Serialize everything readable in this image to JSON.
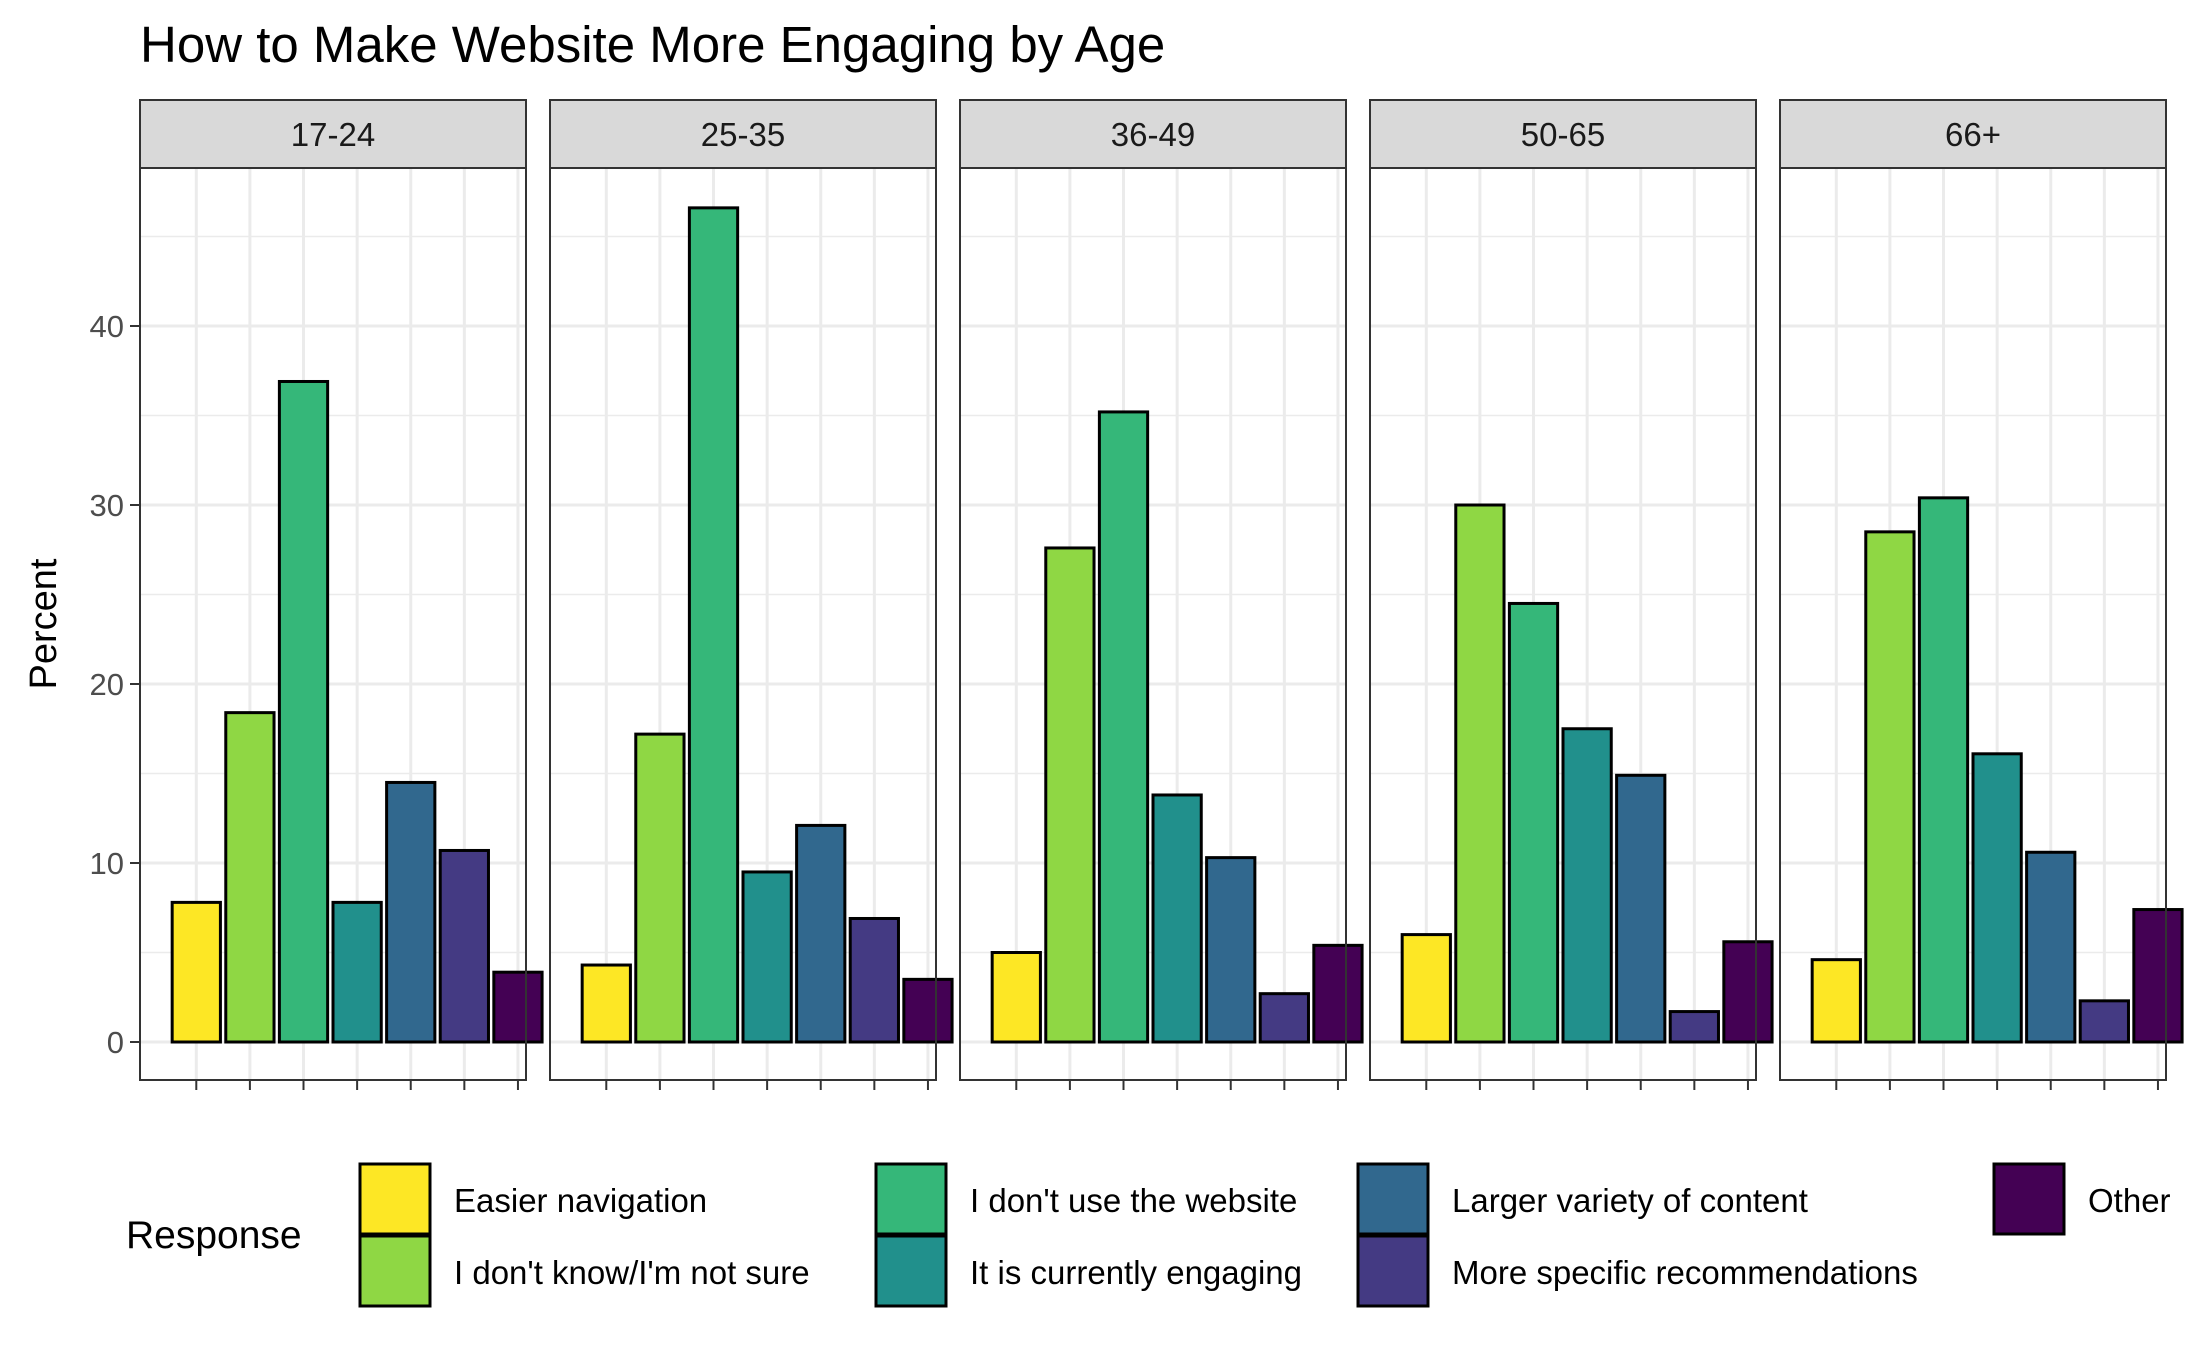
{
  "chart_data": {
    "type": "bar",
    "title": "How to Make Website More Engaging by Age",
    "xlabel": "",
    "ylabel": "Percent",
    "ylim": [
      0,
      49
    ],
    "yticks": [
      0,
      10,
      20,
      30,
      40
    ],
    "grid": true,
    "legend_position": "bottom",
    "legend_title": "Response",
    "categories": [
      "Easier navigation",
      "I don't know/I'm not sure",
      "I don't use the website",
      "It is currently engaging",
      "Larger variety of content",
      "More specific recommendations",
      "Other"
    ],
    "colors": [
      "#FDE725",
      "#8FD744",
      "#35B779",
      "#21908C",
      "#31688E",
      "#443A83",
      "#440154"
    ],
    "facets": [
      {
        "label": "17-24",
        "values": [
          7.8,
          18.4,
          36.9,
          7.8,
          14.5,
          10.7,
          3.9
        ]
      },
      {
        "label": "25-35",
        "values": [
          4.3,
          17.2,
          46.6,
          9.5,
          12.1,
          6.9,
          3.5
        ]
      },
      {
        "label": "36-49",
        "values": [
          5.0,
          27.6,
          35.2,
          13.8,
          10.3,
          2.7,
          5.4
        ]
      },
      {
        "label": "50-65",
        "values": [
          6.0,
          30.0,
          24.5,
          17.5,
          14.9,
          1.7,
          5.6
        ]
      },
      {
        "label": "66+",
        "values": [
          4.6,
          28.5,
          30.4,
          16.1,
          10.6,
          2.3,
          7.4
        ]
      }
    ]
  }
}
